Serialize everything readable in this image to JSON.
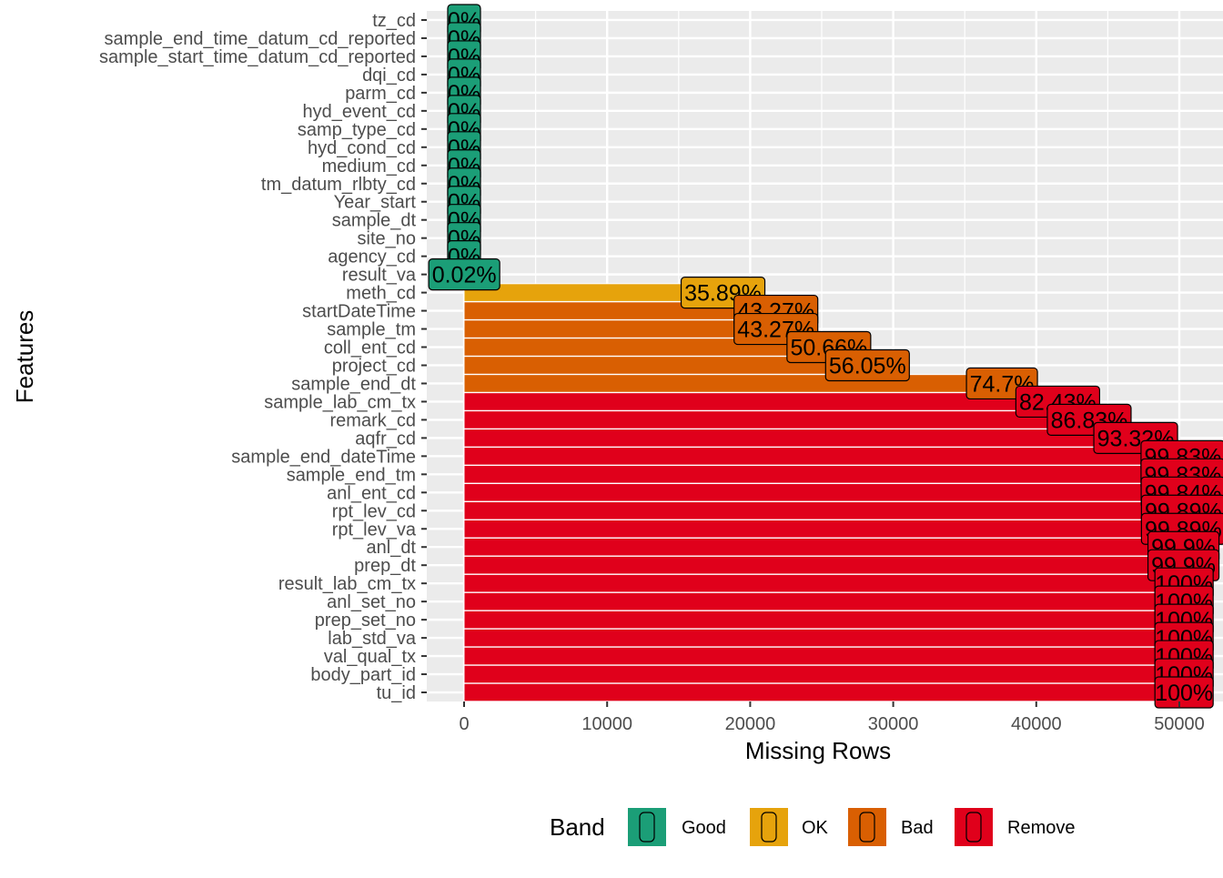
{
  "chart_data": {
    "type": "bar",
    "orientation": "horizontal",
    "title": "",
    "xlabel": "Missing Rows",
    "ylabel": "Features",
    "xlim": [
      -2600,
      52000
    ],
    "x_ticks": [
      0,
      10000,
      20000,
      30000,
      40000,
      50000
    ],
    "grid": true,
    "legend": {
      "title": "Band",
      "position": "bottom",
      "items": [
        {
          "name": "Good",
          "color": "#1b9e77"
        },
        {
          "name": "OK",
          "color": "#e6a30c"
        },
        {
          "name": "Bad",
          "color": "#d95f02"
        },
        {
          "name": "Remove",
          "color": "#e0001b"
        }
      ]
    },
    "bars": [
      {
        "feature": "tz_cd",
        "missing": 0,
        "pct": "0%",
        "band": "Good"
      },
      {
        "feature": "sample_end_time_datum_cd_reported",
        "missing": 0,
        "pct": "0%",
        "band": "Good"
      },
      {
        "feature": "sample_start_time_datum_cd_reported",
        "missing": 0,
        "pct": "0%",
        "band": "Good"
      },
      {
        "feature": "dqi_cd",
        "missing": 0,
        "pct": "0%",
        "band": "Good"
      },
      {
        "feature": "parm_cd",
        "missing": 0,
        "pct": "0%",
        "band": "Good"
      },
      {
        "feature": "hyd_event_cd",
        "missing": 0,
        "pct": "0%",
        "band": "Good"
      },
      {
        "feature": "samp_type_cd",
        "missing": 0,
        "pct": "0%",
        "band": "Good"
      },
      {
        "feature": "hyd_cond_cd",
        "missing": 0,
        "pct": "0%",
        "band": "Good"
      },
      {
        "feature": "medium_cd",
        "missing": 0,
        "pct": "0%",
        "band": "Good"
      },
      {
        "feature": "tm_datum_rlbty_cd",
        "missing": 0,
        "pct": "0%",
        "band": "Good"
      },
      {
        "feature": "Year_start",
        "missing": 0,
        "pct": "0%",
        "band": "Good"
      },
      {
        "feature": "sample_dt",
        "missing": 0,
        "pct": "0%",
        "band": "Good"
      },
      {
        "feature": "site_no",
        "missing": 0,
        "pct": "0%",
        "band": "Good"
      },
      {
        "feature": "agency_cd",
        "missing": 0,
        "pct": "0%",
        "band": "Good"
      },
      {
        "feature": "result_va",
        "missing": 10,
        "pct": "0.02%",
        "band": "Good"
      },
      {
        "feature": "meth_cd",
        "missing": 18100,
        "pct": "35.89%",
        "band": "OK"
      },
      {
        "feature": "startDateTime",
        "missing": 21800,
        "pct": "43.27%",
        "band": "Bad"
      },
      {
        "feature": "sample_tm",
        "missing": 21800,
        "pct": "43.27%",
        "band": "Bad"
      },
      {
        "feature": "coll_ent_cd",
        "missing": 25500,
        "pct": "50.66%",
        "band": "Bad"
      },
      {
        "feature": "project_cd",
        "missing": 28200,
        "pct": "56.05%",
        "band": "Bad"
      },
      {
        "feature": "sample_end_dt",
        "missing": 37600,
        "pct": "74.7%",
        "band": "Bad"
      },
      {
        "feature": "sample_lab_cm_tx",
        "missing": 41500,
        "pct": "82.43%",
        "band": "Remove"
      },
      {
        "feature": "remark_cd",
        "missing": 43700,
        "pct": "86.83%",
        "band": "Remove"
      },
      {
        "feature": "aqfr_cd",
        "missing": 46950,
        "pct": "93.32%",
        "band": "Remove"
      },
      {
        "feature": "sample_end_dateTime",
        "missing": 50250,
        "pct": "99.83%",
        "band": "Remove"
      },
      {
        "feature": "sample_end_tm",
        "missing": 50250,
        "pct": "99.83%",
        "band": "Remove"
      },
      {
        "feature": "anl_ent_cd",
        "missing": 50260,
        "pct": "99.84%",
        "band": "Remove"
      },
      {
        "feature": "rpt_lev_cd",
        "missing": 50280,
        "pct": "99.89%",
        "band": "Remove"
      },
      {
        "feature": "rpt_lev_va",
        "missing": 50280,
        "pct": "99.89%",
        "band": "Remove"
      },
      {
        "feature": "anl_dt",
        "missing": 50290,
        "pct": "99.9%",
        "band": "Remove"
      },
      {
        "feature": "prep_dt",
        "missing": 50290,
        "pct": "99.9%",
        "band": "Remove"
      },
      {
        "feature": "result_lab_cm_tx",
        "missing": 50330,
        "pct": "100%",
        "band": "Remove"
      },
      {
        "feature": "anl_set_no",
        "missing": 50330,
        "pct": "100%",
        "band": "Remove"
      },
      {
        "feature": "prep_set_no",
        "missing": 50330,
        "pct": "100%",
        "band": "Remove"
      },
      {
        "feature": "lab_std_va",
        "missing": 50330,
        "pct": "100%",
        "band": "Remove"
      },
      {
        "feature": "val_qual_tx",
        "missing": 50330,
        "pct": "100%",
        "band": "Remove"
      },
      {
        "feature": "body_part_id",
        "missing": 50330,
        "pct": "100%",
        "band": "Remove"
      },
      {
        "feature": "tu_id",
        "missing": 50330,
        "pct": "100%",
        "band": "Remove"
      }
    ]
  }
}
